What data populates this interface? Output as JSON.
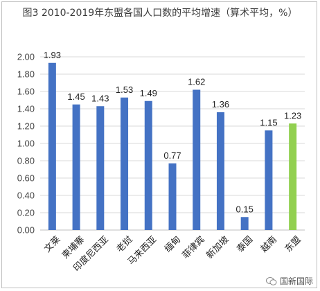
{
  "title": "图3 2010-2019年东盟各国人口数的平均增速（算术平均，%）",
  "watermark": "国新国际",
  "colors": {
    "bar": "#4472c4",
    "highlight": "#92d050",
    "grid": "#d9d9d9"
  },
  "chart_data": {
    "type": "bar",
    "title": "图3 2010-2019年东盟各国人口数的平均增速（算术平均，%）",
    "categories": [
      "文莱",
      "柬埔寨",
      "印度尼西亚",
      "老挝",
      "马来西亚",
      "缅甸",
      "菲律宾",
      "新加坡",
      "泰国",
      "越南",
      "东盟"
    ],
    "values": [
      1.93,
      1.45,
      1.43,
      1.53,
      1.49,
      0.77,
      1.62,
      1.36,
      0.15,
      1.15,
      1.23
    ],
    "value_labels": [
      "1.93",
      "1.45",
      "1.43",
      "1.53",
      "1.49",
      "0.77",
      "1.62",
      "1.36",
      "0.15",
      "1.15",
      "1.23"
    ],
    "highlight_category": "东盟",
    "ylim": [
      0,
      2.0
    ],
    "yticks": [
      "0.00",
      "0.20",
      "0.40",
      "0.60",
      "0.80",
      "1.00",
      "1.20",
      "1.40",
      "1.60",
      "1.80",
      "2.00"
    ],
    "xlabel": "",
    "ylabel": "",
    "grid": true,
    "legend": "none"
  }
}
